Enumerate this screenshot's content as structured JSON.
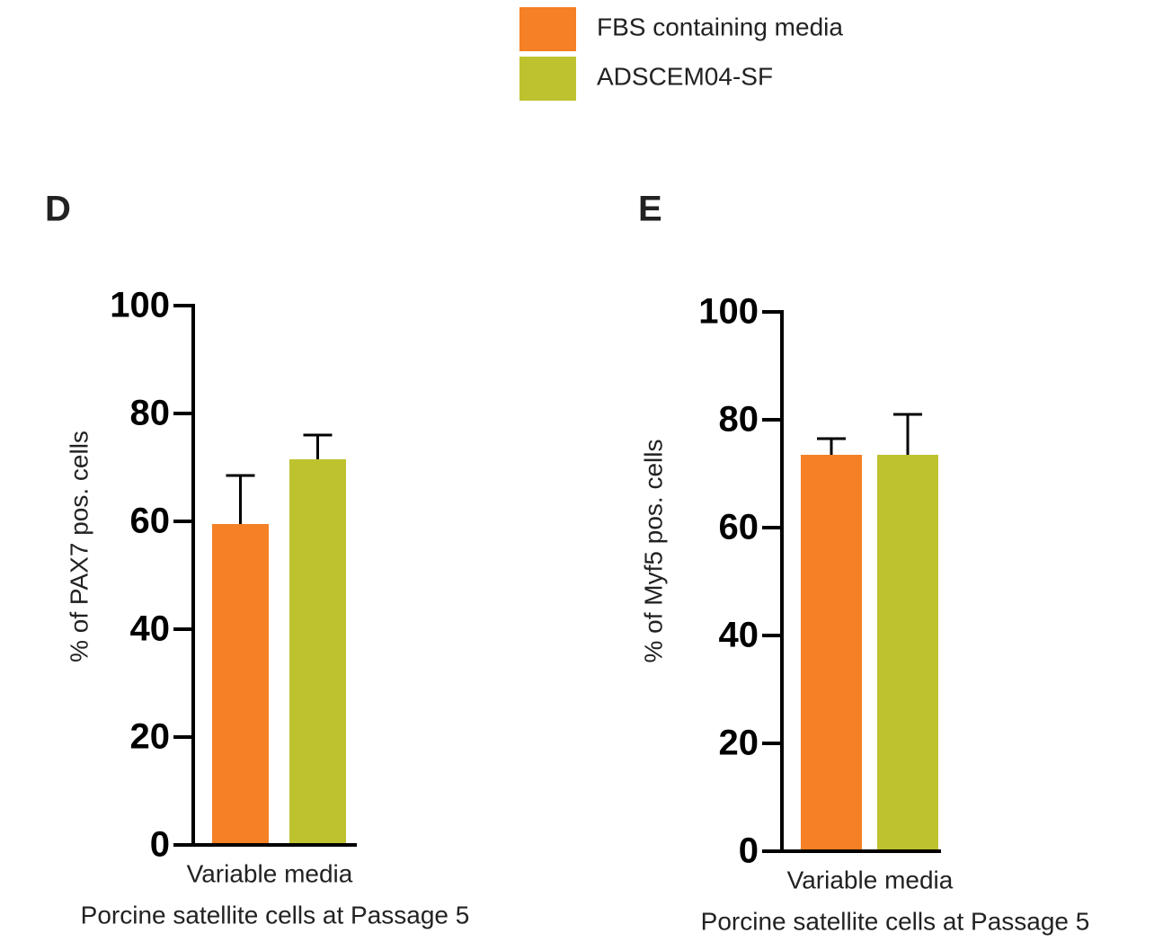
{
  "chart_data": [
    {
      "type": "bar",
      "panel": "D",
      "categories": [
        "Variable media"
      ],
      "xlabel": "Porcine satellite cells at Passage 5",
      "ylabel": "% of PAX7 pos. cells",
      "ylim": [
        0,
        100
      ],
      "yticks": [
        0,
        20,
        40,
        60,
        80,
        100
      ],
      "series": [
        {
          "name": "FBS containing media",
          "color": "#f58025",
          "values": [
            59.5
          ],
          "errors": [
            9
          ]
        },
        {
          "name": "ADSCEM04-SF",
          "color": "#bec22f",
          "values": [
            71.5
          ],
          "errors": [
            4.5
          ]
        }
      ]
    },
    {
      "type": "bar",
      "panel": "E",
      "categories": [
        "Variable media"
      ],
      "xlabel": "Porcine satellite cells at Passage 5",
      "ylabel": "% of Myf5 pos. cells",
      "ylim": [
        0,
        100
      ],
      "yticks": [
        0,
        20,
        40,
        60,
        80,
        100
      ],
      "series": [
        {
          "name": "FBS containing media",
          "color": "#f58025",
          "values": [
            73.5
          ],
          "errors": [
            3
          ]
        },
        {
          "name": "ADSCEM04-SF",
          "color": "#bec22f",
          "values": [
            73.5
          ],
          "errors": [
            7.5
          ]
        }
      ]
    }
  ]
}
